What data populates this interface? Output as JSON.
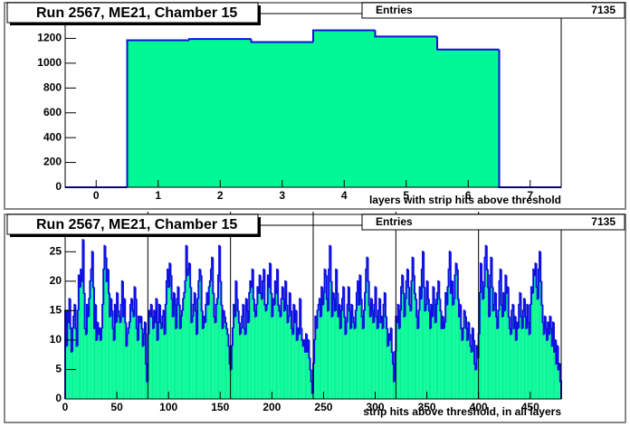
{
  "chart_data": [
    {
      "type": "histogram",
      "title": "Run 2567, ME21, Chamber 15",
      "stats": {
        "label": "Entries",
        "value": 7135
      },
      "x_label": "layers with strip hits above threshold",
      "bins": [
        -0.5,
        0.5,
        1.5,
        2.5,
        3.5,
        4.5,
        5.5,
        6.5,
        7.5
      ],
      "values": [
        0,
        1185,
        1195,
        1170,
        1265,
        1215,
        1110,
        0
      ],
      "color": "#00f894",
      "line_color": "#1010e0",
      "xlim": [
        -0.5,
        7.5
      ],
      "xticks": [
        0,
        1,
        2,
        3,
        4,
        5,
        6,
        7
      ],
      "ylim": [
        0,
        1400
      ],
      "yticks": [
        0,
        200,
        400,
        600,
        800,
        1000,
        1200
      ]
    },
    {
      "type": "histogram",
      "title": "Run 2567, ME21, Chamber 15",
      "stats": {
        "label": "Entries",
        "value": 7135
      },
      "x_label": "strip hits above threshold, in all layers",
      "bins": [
        0,
        1,
        2,
        3,
        4,
        5,
        6,
        7,
        8,
        9,
        10,
        11,
        12,
        13,
        14,
        15,
        16,
        17,
        18,
        19,
        20,
        21,
        22,
        23,
        24,
        25,
        26,
        27,
        28,
        29,
        30,
        31,
        32,
        33,
        34,
        35,
        36,
        37,
        38,
        39,
        40,
        41,
        42,
        43,
        44,
        45,
        46,
        47,
        48,
        49,
        50,
        51,
        52,
        53,
        54,
        55,
        56,
        57,
        58,
        59,
        60,
        61,
        62,
        63,
        64,
        65,
        66,
        67,
        68,
        69,
        70,
        71,
        72,
        73,
        74,
        75,
        76,
        77,
        78,
        79,
        80,
        81,
        82,
        83,
        84,
        85,
        86,
        87,
        88,
        89,
        90,
        91,
        92,
        93,
        94,
        95,
        96,
        97,
        98,
        99,
        100,
        101,
        102,
        103,
        104,
        105,
        106,
        107,
        108,
        109,
        110,
        111,
        112,
        113,
        114,
        115,
        116,
        117,
        118,
        119,
        120,
        121,
        122,
        123,
        124,
        125,
        126,
        127,
        128,
        129,
        130,
        131,
        132,
        133,
        134,
        135,
        136,
        137,
        138,
        139,
        140,
        141,
        142,
        143,
        144,
        145,
        146,
        147,
        148,
        149,
        150,
        151,
        152,
        153,
        154,
        155,
        156,
        157,
        158,
        159,
        160,
        161,
        162,
        163,
        164,
        165,
        166,
        167,
        168,
        169,
        170,
        171,
        172,
        173,
        174,
        175,
        176,
        177,
        178,
        179,
        180,
        181,
        182,
        183,
        184,
        185,
        186,
        187,
        188,
        189,
        190,
        191,
        192,
        193,
        194,
        195,
        196,
        197,
        198,
        199,
        200,
        201,
        202,
        203,
        204,
        205,
        206,
        207,
        208,
        209,
        210,
        211,
        212,
        213,
        214,
        215,
        216,
        217,
        218,
        219,
        220,
        221,
        222,
        223,
        224,
        225,
        226,
        227,
        228,
        229,
        230,
        231,
        232,
        233,
        234,
        235,
        236,
        237,
        238,
        239,
        240,
        241,
        242,
        243,
        244,
        245,
        246,
        247,
        248,
        249,
        250,
        251,
        252,
        253,
        254,
        255,
        256,
        257,
        258,
        259,
        260,
        261,
        262,
        263,
        264,
        265,
        266,
        267,
        268,
        269,
        270,
        271,
        272,
        273,
        274,
        275,
        276,
        277,
        278,
        279,
        280,
        281,
        282,
        283,
        284,
        285,
        286,
        287,
        288,
        289,
        290,
        291,
        292,
        293,
        294,
        295,
        296,
        297,
        298,
        299,
        300,
        301,
        302,
        303,
        304,
        305,
        306,
        307,
        308,
        309,
        310,
        311,
        312,
        313,
        314,
        315,
        316,
        317,
        318,
        319,
        320,
        321,
        322,
        323,
        324,
        325,
        326,
        327,
        328,
        329,
        330,
        331,
        332,
        333,
        334,
        335,
        336,
        337,
        338,
        339,
        340,
        341,
        342,
        343,
        344,
        345,
        346,
        347,
        348,
        349,
        350,
        351,
        352,
        353,
        354,
        355,
        356,
        357,
        358,
        359,
        360,
        361,
        362,
        363,
        364,
        365,
        366,
        367,
        368,
        369,
        370,
        371,
        372,
        373,
        374,
        375,
        376,
        377,
        378,
        379,
        380,
        381,
        382,
        383,
        384,
        385,
        386,
        387,
        388,
        389,
        390,
        391,
        392,
        393,
        394,
        395,
        396,
        397,
        398,
        399,
        400,
        401,
        402,
        403,
        404,
        405,
        406,
        407,
        408,
        409,
        410,
        411,
        412,
        413,
        414,
        415,
        416,
        417,
        418,
        419,
        420,
        421,
        422,
        423,
        424,
        425,
        426,
        427,
        428,
        429,
        430,
        431,
        432,
        433,
        434,
        435,
        436,
        437,
        438,
        439,
        440,
        441,
        442,
        443,
        444,
        445,
        446,
        447,
        448,
        449,
        450,
        451,
        452,
        453,
        454,
        455,
        456,
        457,
        458,
        459,
        460,
        461,
        462,
        463,
        464,
        465,
        466,
        467,
        468,
        469,
        470,
        471,
        472,
        473,
        474,
        475,
        476,
        477,
        478,
        479,
        480
      ],
      "values": [
        15,
        9,
        15,
        13,
        17,
        12,
        8,
        12,
        14,
        16,
        12,
        9,
        15,
        21,
        19,
        22,
        20,
        27,
        18,
        12,
        11,
        16,
        14,
        17,
        20,
        22,
        25,
        19,
        12,
        16,
        10,
        13,
        11,
        12,
        10,
        12,
        16,
        22,
        26,
        24,
        20,
        22,
        18,
        14,
        17,
        15,
        12,
        10,
        16,
        13,
        18,
        15,
        14,
        13,
        16,
        20,
        14,
        17,
        13,
        9,
        11,
        12,
        13,
        16,
        17,
        15,
        14,
        19,
        17,
        12,
        10,
        14,
        13,
        14,
        12,
        9,
        11,
        13,
        6,
        3,
        11,
        15,
        14,
        16,
        14,
        12,
        15,
        13,
        17,
        10,
        13,
        16,
        13,
        12,
        14,
        15,
        11,
        16,
        20,
        22,
        19,
        23,
        21,
        17,
        14,
        18,
        16,
        12,
        17,
        19,
        16,
        12,
        14,
        15,
        17,
        18,
        20,
        26,
        21,
        22,
        23,
        19,
        13,
        14,
        16,
        18,
        15,
        11,
        17,
        20,
        22,
        21,
        15,
        12,
        14,
        13,
        16,
        18,
        16,
        19,
        20,
        22,
        24,
        18,
        14,
        13,
        16,
        17,
        21,
        26,
        20,
        16,
        12,
        15,
        14,
        13,
        12,
        11,
        9,
        6,
        5,
        9,
        12,
        16,
        14,
        20,
        17,
        15,
        13,
        11,
        12,
        14,
        16,
        12,
        11,
        17,
        15,
        13,
        18,
        20,
        19,
        22,
        17,
        15,
        14,
        16,
        19,
        18,
        21,
        18,
        17,
        20,
        22,
        16,
        15,
        16,
        21,
        19,
        23,
        18,
        14,
        17,
        16,
        20,
        18,
        22,
        16,
        15,
        14,
        17,
        19,
        17,
        15,
        20,
        16,
        13,
        14,
        18,
        15,
        12,
        11,
        16,
        13,
        15,
        10,
        12,
        11,
        17,
        12,
        10,
        9,
        10,
        8,
        11,
        8,
        10,
        7,
        5,
        3,
        1,
        6,
        10,
        14,
        12,
        15,
        16,
        17,
        14,
        19,
        16,
        18,
        22,
        21,
        17,
        15,
        22,
        26,
        20,
        14,
        18,
        17,
        15,
        22,
        18,
        14,
        16,
        12,
        15,
        17,
        19,
        14,
        11,
        13,
        16,
        19,
        15,
        12,
        16,
        14,
        13,
        12,
        15,
        18,
        20,
        16,
        21,
        17,
        14,
        12,
        15,
        18,
        22,
        24,
        20,
        16,
        14,
        17,
        15,
        13,
        16,
        19,
        14,
        12,
        15,
        17,
        13,
        14,
        12,
        16,
        18,
        14,
        12,
        9,
        11,
        10,
        12,
        8,
        6,
        3,
        8,
        14,
        13,
        16,
        12,
        15,
        19,
        21,
        18,
        14,
        17,
        20,
        22,
        19,
        16,
        15,
        20,
        24,
        21,
        18,
        17,
        14,
        12,
        15,
        19,
        17,
        22,
        25,
        19,
        15,
        16,
        20,
        17,
        15,
        12,
        16,
        14,
        19,
        17,
        13,
        16,
        18,
        20,
        17,
        15,
        12,
        14,
        12,
        13,
        18,
        16,
        19,
        22,
        25,
        18,
        20,
        16,
        17,
        21,
        23,
        22,
        17,
        14,
        16,
        12,
        10,
        12,
        15,
        14,
        12,
        10,
        13,
        11,
        9,
        8,
        12,
        10,
        6,
        5,
        9,
        7,
        11,
        18,
        23,
        20,
        17,
        19,
        24,
        26,
        22,
        19,
        14,
        21,
        24,
        19,
        15,
        16,
        18,
        14,
        12,
        15,
        20,
        22,
        16,
        14,
        18,
        15,
        21,
        18,
        19,
        14,
        12,
        11,
        15,
        16,
        12,
        14,
        10,
        13,
        12,
        16,
        18,
        14,
        12,
        15,
        17,
        14,
        12,
        16,
        13,
        11,
        16,
        19,
        18,
        22,
        21,
        23,
        19,
        17,
        22,
        25,
        20,
        16,
        13,
        11,
        14,
        12,
        10,
        13,
        11,
        14,
        12,
        9,
        13,
        8,
        10,
        6,
        9,
        5,
        6,
        3
      ],
      "vlines": [
        80,
        160,
        240,
        320,
        400
      ],
      "color": "#00f894",
      "line_color": "#1010e0",
      "xlim": [
        0,
        480
      ],
      "xticks": [
        0,
        50,
        100,
        150,
        200,
        250,
        300,
        350,
        400,
        450
      ],
      "ylim": [
        0,
        29.5
      ],
      "yticks": [
        0,
        5,
        10,
        15,
        20,
        25
      ]
    }
  ]
}
